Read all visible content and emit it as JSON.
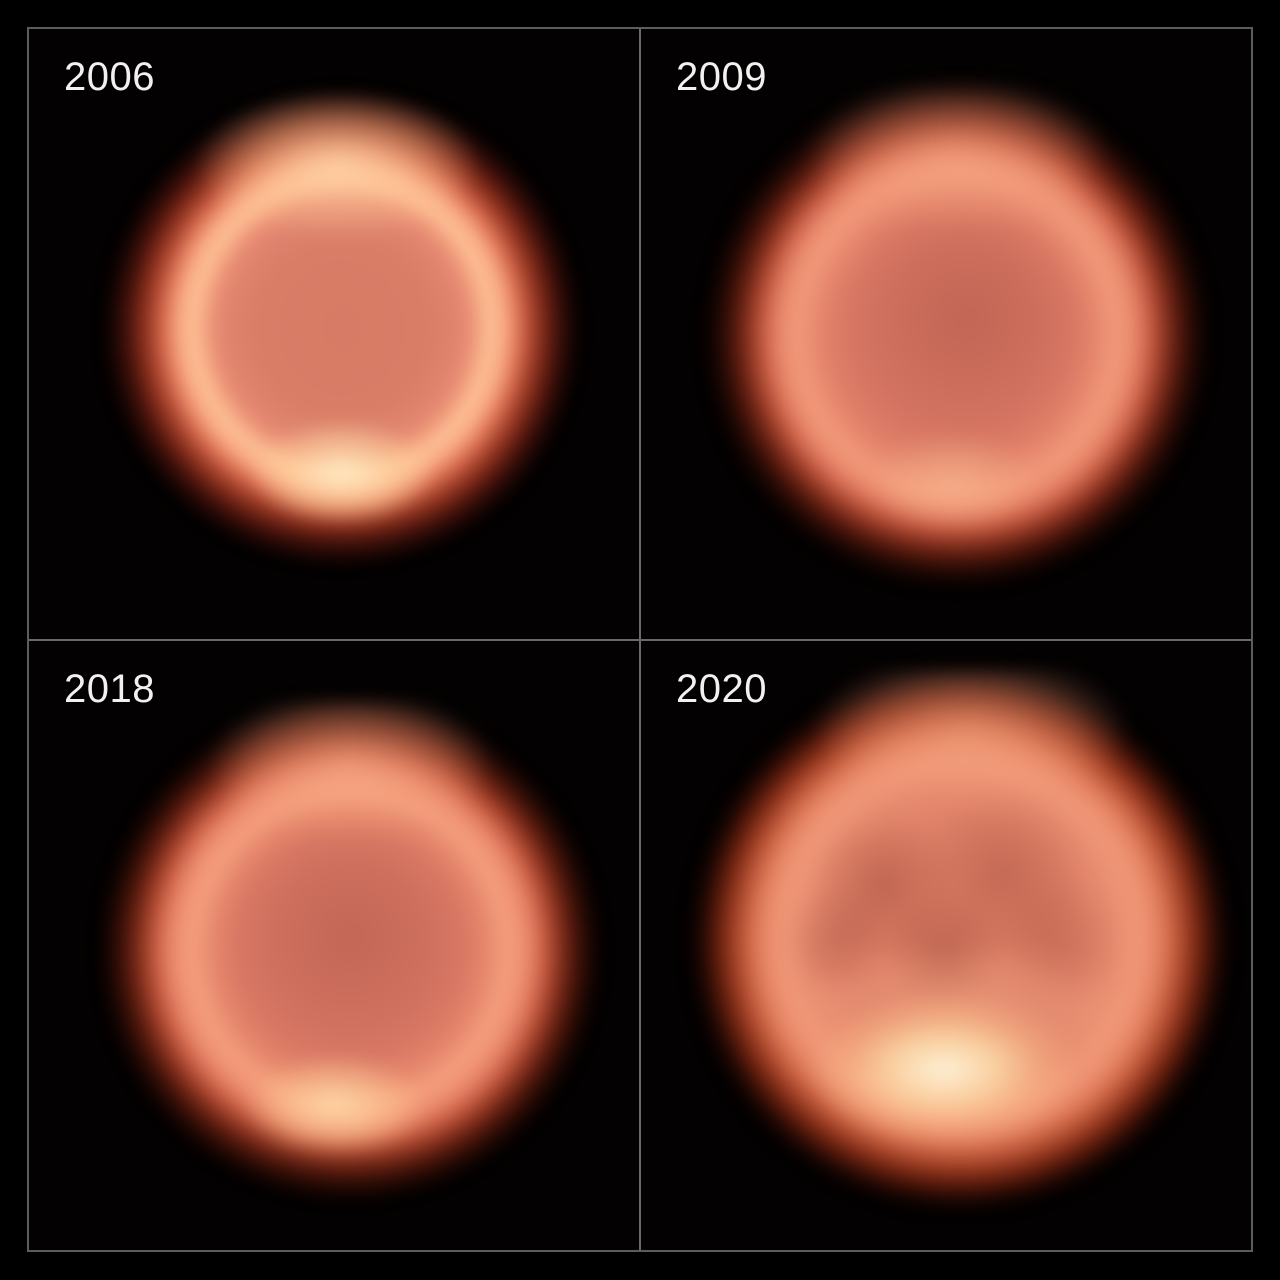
{
  "figure": {
    "type": "astronomical-image-montage",
    "subject": "thermal-infrared planetary disc",
    "grid": {
      "rows": 2,
      "cols": 2
    }
  },
  "panels": [
    {
      "year": "2006"
    },
    {
      "year": "2009"
    },
    {
      "year": "2018"
    },
    {
      "year": "2020"
    }
  ],
  "palette": {
    "background": "#000000",
    "frame_line": "#5c5c5c",
    "label_text": "#f2f1ef",
    "disc_body": "#e18570",
    "disc_ring": "#ffc89e",
    "hotspot_cream": "#fff2d0",
    "glow_dark_red": "#7c2818"
  }
}
